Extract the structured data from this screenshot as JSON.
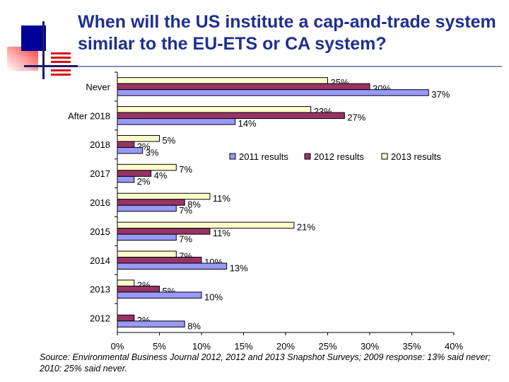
{
  "title": "When will the US institute a cap-and-trade system similar to the EU-ETS or CA system?",
  "source": "Source: Environmental Business Journal 2012, 2012 and 2013 Snapshot Surveys; 2009 response: 13% said never; 2010: 25% said never.",
  "chart_data": {
    "type": "bar",
    "orientation": "horizontal",
    "categories": [
      "Never",
      "After 2018",
      "2018",
      "2017",
      "2016",
      "2015",
      "2014",
      "2013",
      "2012"
    ],
    "series": [
      {
        "name": "2011 results",
        "color": "#9999ff",
        "values": [
          37,
          14,
          3,
          2,
          7,
          7,
          13,
          10,
          8
        ]
      },
      {
        "name": "2012 results",
        "color": "#993366",
        "values": [
          30,
          27,
          2,
          4,
          8,
          11,
          10,
          5,
          2
        ]
      },
      {
        "name": "2013 results",
        "color": "#ffffcc",
        "values": [
          25,
          23,
          5,
          7,
          11,
          21,
          7,
          2,
          null
        ]
      }
    ],
    "xlim": [
      0,
      40
    ],
    "xticks": [
      "0%",
      "5%",
      "10%",
      "15%",
      "20%",
      "25%",
      "30%",
      "35%",
      "40%"
    ],
    "value_suffix": "%",
    "grid": false,
    "legend": "right-middle"
  }
}
